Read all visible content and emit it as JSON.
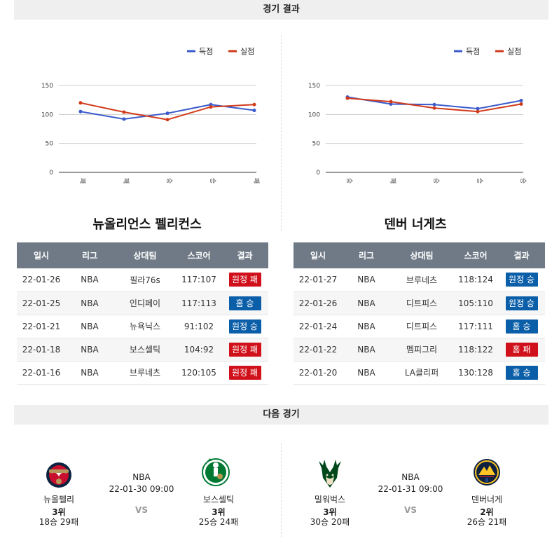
{
  "section_results_title": "경기 결과",
  "section_next_title": "다음 경기",
  "colors": {
    "scored": "#3b5bcc",
    "conceded": "#d13b1c",
    "loss_badge": "#d0111b",
    "win_badge": "#0b5ea8",
    "header_bg": "#6f7a86"
  },
  "chart_data": [
    {
      "type": "line",
      "legend": [
        "득점",
        "실점"
      ],
      "categories": [
        "패",
        "패",
        "승",
        "승",
        "패"
      ],
      "series": [
        {
          "name": "득점",
          "values": [
            105,
            92,
            102,
            117,
            107
          ]
        },
        {
          "name": "실점",
          "values": [
            120,
            104,
            91,
            113,
            117
          ]
        }
      ],
      "yticks": [
        "150",
        "100",
        "50",
        "0"
      ],
      "ylim": [
        0,
        150
      ],
      "legend_position": "top-right",
      "grid": true
    },
    {
      "type": "line",
      "legend": [
        "득점",
        "실점"
      ],
      "categories": [
        "승",
        "패",
        "승",
        "승",
        "승"
      ],
      "series": [
        {
          "name": "득점",
          "values": [
            130,
            118,
            117,
            110,
            124
          ]
        },
        {
          "name": "실점",
          "values": [
            128,
            122,
            111,
            105,
            118
          ]
        }
      ],
      "yticks": [
        "150",
        "100",
        "50",
        "0"
      ],
      "ylim": [
        0,
        150
      ],
      "legend_position": "top-right",
      "grid": true
    }
  ],
  "teams": [
    {
      "title": "뉴올리언스 펠리컨스",
      "headers": [
        "일시",
        "리그",
        "상대팀",
        "스코어",
        "결과"
      ],
      "rows": [
        {
          "date": "22-01-26",
          "league": "NBA",
          "opponent": "필라76s",
          "score": "117:107",
          "result": "원정 패",
          "type": "loss"
        },
        {
          "date": "22-01-25",
          "league": "NBA",
          "opponent": "인디페이",
          "score": "117:113",
          "result": "홈 승",
          "type": "win"
        },
        {
          "date": "22-01-21",
          "league": "NBA",
          "opponent": "뉴욕닉스",
          "score": "91:102",
          "result": "원정 승",
          "type": "win"
        },
        {
          "date": "22-01-18",
          "league": "NBA",
          "opponent": "보스셀틱",
          "score": "104:92",
          "result": "원정 패",
          "type": "loss"
        },
        {
          "date": "22-01-16",
          "league": "NBA",
          "opponent": "브루네츠",
          "score": "120:105",
          "result": "원정 패",
          "type": "loss"
        }
      ]
    },
    {
      "title": "덴버 너게츠",
      "headers": [
        "일시",
        "리그",
        "상대팀",
        "스코어",
        "결과"
      ],
      "rows": [
        {
          "date": "22-01-27",
          "league": "NBA",
          "opponent": "브루네츠",
          "score": "118:124",
          "result": "원정 승",
          "type": "win"
        },
        {
          "date": "22-01-26",
          "league": "NBA",
          "opponent": "디트피스",
          "score": "105:110",
          "result": "원정 승",
          "type": "win"
        },
        {
          "date": "22-01-24",
          "league": "NBA",
          "opponent": "디트피스",
          "score": "117:111",
          "result": "홈 승",
          "type": "win"
        },
        {
          "date": "22-01-22",
          "league": "NBA",
          "opponent": "멤피그리",
          "score": "118:122",
          "result": "홈 패",
          "type": "loss"
        },
        {
          "date": "22-01-20",
          "league": "NBA",
          "opponent": "LA클리퍼",
          "score": "130:128",
          "result": "홈 승",
          "type": "win"
        }
      ]
    }
  ],
  "next_games": [
    {
      "league": "NBA",
      "datetime": "22-01-30 09:00",
      "vs": "VS",
      "home": {
        "name": "뉴올펠리",
        "rank": "3위",
        "record": "18승 29패",
        "logo": "pelicans-logo"
      },
      "away": {
        "name": "보스셀틱",
        "rank": "3위",
        "record": "25승 24패",
        "logo": "celtics-logo"
      }
    },
    {
      "league": "NBA",
      "datetime": "22-01-31 09:00",
      "vs": "VS",
      "home": {
        "name": "밀워벅스",
        "rank": "3위",
        "record": "30승 20패",
        "logo": "bucks-logo"
      },
      "away": {
        "name": "덴버너게",
        "rank": "2위",
        "record": "26승 21패",
        "logo": "nuggets-logo"
      }
    }
  ]
}
